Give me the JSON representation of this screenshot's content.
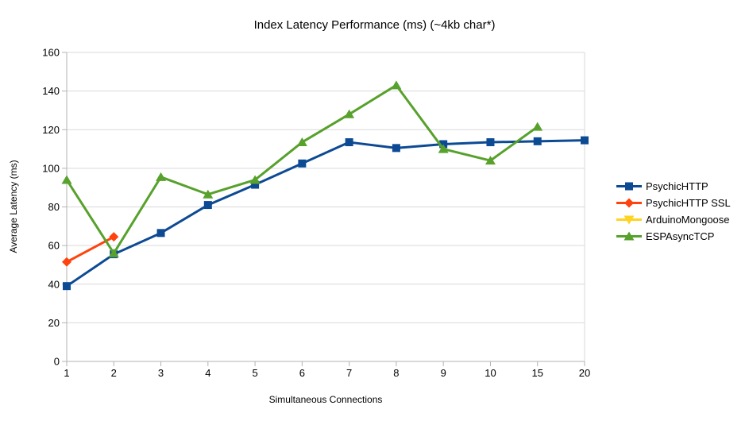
{
  "chart_data": {
    "type": "line",
    "title": "Index Latency Performance (ms) (~4kb char*)",
    "xlabel": "Simultaneous Connections",
    "ylabel": "Average Latency (ms)",
    "categories": [
      "1",
      "2",
      "3",
      "4",
      "5",
      "6",
      "7",
      "8",
      "9",
      "10",
      "15",
      "20"
    ],
    "ylim": [
      0,
      160
    ],
    "ytick_step": 20,
    "yticks": [
      0,
      20,
      40,
      60,
      80,
      100,
      120,
      140,
      160
    ],
    "grid": "horizontal",
    "legend_position": "right",
    "colors": {
      "grid": "#d9d9d9",
      "axis": "#b3b3b3",
      "text": "#000000"
    },
    "series": [
      {
        "name": "PsychicHTTP",
        "color": "#0d4a94",
        "marker": "square",
        "values": [
          39,
          55.5,
          66.5,
          81,
          91.5,
          102.5,
          113.5,
          110.5,
          112.5,
          113.5,
          114,
          114.5
        ]
      },
      {
        "name": "PsychicHTTP SSL",
        "color": "#ff420e",
        "marker": "diamond",
        "values": [
          51.5,
          64.5,
          null,
          null,
          null,
          null,
          null,
          null,
          null,
          null,
          null,
          null
        ]
      },
      {
        "name": "ArduinoMongoose",
        "color": "#ffd320",
        "marker": "triangle-down",
        "values": [
          null,
          null,
          null,
          null,
          null,
          null,
          null,
          null,
          null,
          null,
          null,
          null
        ]
      },
      {
        "name": "ESPAsyncTCP",
        "color": "#57a12c",
        "marker": "triangle-up",
        "values": [
          94,
          56,
          95.5,
          86.5,
          94,
          113.5,
          128,
          143,
          110,
          104,
          121.5,
          null
        ]
      }
    ]
  }
}
